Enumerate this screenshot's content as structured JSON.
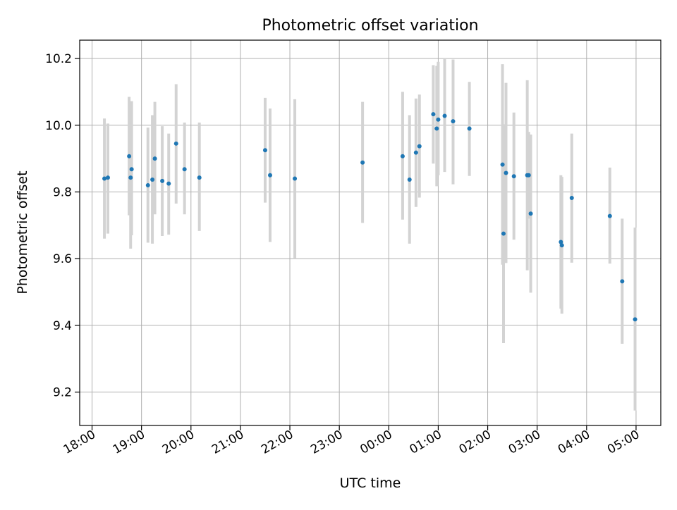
{
  "chart_data": {
    "type": "scatter",
    "title": "Photometric offset variation",
    "xlabel": "UTC time",
    "ylabel": "Photometric offset",
    "x_unit": "hours relative to 00:00 UTC (date axis; negative = previous evening)",
    "xlim": [
      -6.25,
      5.5
    ],
    "ylim": [
      9.1,
      10.255
    ],
    "x_ticks": [
      -6,
      -5,
      -4,
      -3,
      -2,
      -1,
      0,
      1,
      2,
      3,
      4,
      5
    ],
    "x_tick_labels": [
      "18:00",
      "19:00",
      "20:00",
      "21:00",
      "22:00",
      "23:00",
      "00:00",
      "01:00",
      "02:00",
      "03:00",
      "04:00",
      "05:00"
    ],
    "y_ticks": [
      9.2,
      9.4,
      9.6,
      9.8,
      10.0,
      10.2
    ],
    "y_tick_labels": [
      "9.2",
      "9.4",
      "9.6",
      "9.8",
      "10.0",
      "10.2"
    ],
    "grid": true,
    "marker_color": "#1f77b4",
    "errorbar_color": "#d3d3d3",
    "points": [
      {
        "x": -5.75,
        "y": 9.84,
        "lo": 9.66,
        "hi": 10.02
      },
      {
        "x": -5.68,
        "y": 9.843,
        "lo": 9.675,
        "hi": 10.005
      },
      {
        "x": -5.25,
        "y": 9.907,
        "lo": 9.73,
        "hi": 10.085
      },
      {
        "x": -5.22,
        "y": 9.843,
        "lo": 9.63,
        "hi": 10.03
      },
      {
        "x": -5.2,
        "y": 9.868,
        "lo": 9.67,
        "hi": 10.072
      },
      {
        "x": -4.87,
        "y": 9.82,
        "lo": 9.648,
        "hi": 9.993
      },
      {
        "x": -4.78,
        "y": 9.837,
        "lo": 9.645,
        "hi": 10.03
      },
      {
        "x": -4.73,
        "y": 9.9,
        "lo": 9.733,
        "hi": 10.07
      },
      {
        "x": -4.58,
        "y": 9.833,
        "lo": 9.668,
        "hi": 9.997
      },
      {
        "x": -4.45,
        "y": 9.825,
        "lo": 9.672,
        "hi": 9.975
      },
      {
        "x": -4.3,
        "y": 9.945,
        "lo": 9.765,
        "hi": 10.123
      },
      {
        "x": -4.13,
        "y": 9.868,
        "lo": 9.733,
        "hi": 10.008
      },
      {
        "x": -3.83,
        "y": 9.843,
        "lo": 9.683,
        "hi": 10.008
      },
      {
        "x": -2.5,
        "y": 9.925,
        "lo": 9.768,
        "hi": 10.082
      },
      {
        "x": -2.4,
        "y": 9.85,
        "lo": 9.65,
        "hi": 10.05
      },
      {
        "x": -1.9,
        "y": 9.84,
        "lo": 9.6,
        "hi": 10.078
      },
      {
        "x": -0.53,
        "y": 9.888,
        "lo": 9.707,
        "hi": 10.07
      },
      {
        "x": 0.28,
        "y": 9.907,
        "lo": 9.717,
        "hi": 10.1
      },
      {
        "x": 0.42,
        "y": 9.837,
        "lo": 9.645,
        "hi": 10.03
      },
      {
        "x": 0.55,
        "y": 9.918,
        "lo": 9.755,
        "hi": 10.08
      },
      {
        "x": 0.62,
        "y": 9.937,
        "lo": 9.783,
        "hi": 10.092
      },
      {
        "x": 0.9,
        "y": 10.033,
        "lo": 9.885,
        "hi": 10.18
      },
      {
        "x": 0.97,
        "y": 9.99,
        "lo": 9.817,
        "hi": 10.178
      },
      {
        "x": 1.0,
        "y": 10.017,
        "lo": 9.85,
        "hi": 10.19
      },
      {
        "x": 1.13,
        "y": 10.028,
        "lo": 9.86,
        "hi": 10.198
      },
      {
        "x": 1.3,
        "y": 10.012,
        "lo": 9.823,
        "hi": 10.197
      },
      {
        "x": 1.63,
        "y": 9.99,
        "lo": 9.848,
        "hi": 10.13
      },
      {
        "x": 2.3,
        "y": 9.882,
        "lo": 9.582,
        "hi": 10.183
      },
      {
        "x": 2.32,
        "y": 9.675,
        "lo": 9.347,
        "hi": 10.003
      },
      {
        "x": 2.37,
        "y": 9.857,
        "lo": 9.587,
        "hi": 10.127
      },
      {
        "x": 2.53,
        "y": 9.847,
        "lo": 9.657,
        "hi": 10.038
      },
      {
        "x": 2.8,
        "y": 9.85,
        "lo": 9.565,
        "hi": 10.135
      },
      {
        "x": 2.83,
        "y": 9.85,
        "lo": 9.72,
        "hi": 9.98
      },
      {
        "x": 2.87,
        "y": 9.735,
        "lo": 9.498,
        "hi": 9.972
      },
      {
        "x": 3.48,
        "y": 9.65,
        "lo": 9.45,
        "hi": 9.85
      },
      {
        "x": 3.5,
        "y": 9.64,
        "lo": 9.435,
        "hi": 9.845
      },
      {
        "x": 3.7,
        "y": 9.782,
        "lo": 9.588,
        "hi": 9.975
      },
      {
        "x": 4.47,
        "y": 9.728,
        "lo": 9.585,
        "hi": 9.873
      },
      {
        "x": 4.72,
        "y": 9.532,
        "lo": 9.345,
        "hi": 9.72
      },
      {
        "x": 4.98,
        "y": 9.418,
        "lo": 9.145,
        "hi": 9.693
      }
    ]
  }
}
